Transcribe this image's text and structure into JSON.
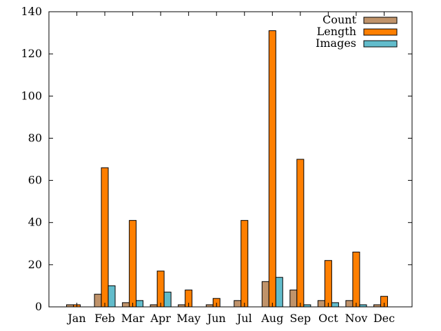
{
  "chart_data": {
    "type": "bar",
    "title": "",
    "xlabel": "",
    "ylabel": "",
    "ylim": [
      0,
      140
    ],
    "yticks": [
      0,
      20,
      40,
      60,
      80,
      100,
      120,
      140
    ],
    "grid": false,
    "legend_position": "top-right",
    "categories": [
      "Jan",
      "Feb",
      "Mar",
      "Apr",
      "May",
      "Jun",
      "Jul",
      "Aug",
      "Sep",
      "Oct",
      "Nov",
      "Dec"
    ],
    "series": [
      {
        "name": "Count",
        "color": "#c0936a",
        "values": [
          1,
          6,
          2,
          1,
          1,
          1,
          3,
          12,
          8,
          3,
          3,
          1
        ]
      },
      {
        "name": "Length",
        "color": "#ff7f00",
        "values": [
          1,
          66,
          41,
          17,
          8,
          4,
          41,
          131,
          70,
          22,
          26,
          5
        ]
      },
      {
        "name": "Images",
        "color": "#62bccb",
        "values": [
          0,
          10,
          3,
          7,
          0,
          0,
          0,
          14,
          1,
          2,
          1,
          0
        ]
      }
    ]
  }
}
